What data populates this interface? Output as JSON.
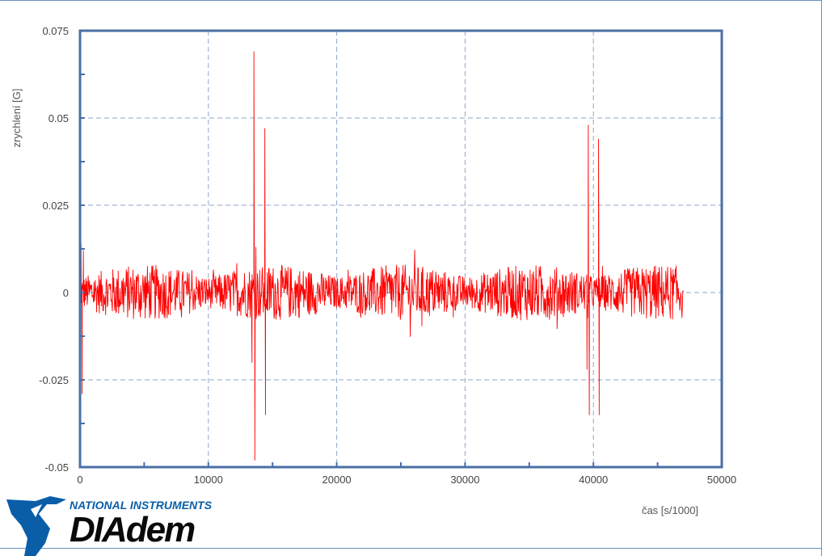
{
  "chart_data": {
    "type": "line",
    "title": "",
    "xlabel": "čas [s/1000]",
    "ylabel": "zrychlení [G]",
    "xlim": [
      0,
      50000
    ],
    "ylim": [
      -0.05,
      0.075
    ],
    "x_ticks": [
      0,
      10000,
      20000,
      30000,
      40000,
      50000
    ],
    "x_tick_labels": [
      "0",
      "10000",
      "20000",
      "30000",
      "40000",
      "50000"
    ],
    "y_ticks": [
      -0.05,
      -0.025,
      0,
      0.025,
      0.05,
      0.075
    ],
    "y_tick_labels": [
      "-0.05",
      "-0.025",
      "0",
      "0.025",
      "0.05",
      "0.075"
    ],
    "grid": true,
    "series": [
      {
        "color": "#ff0000",
        "x_range": [
          0,
          47000
        ],
        "baseline": 0,
        "noise_amplitude": 0.008,
        "points": [
          {
            "x": 0,
            "y": 0
          },
          {
            "x": 80,
            "y": 0.014
          },
          {
            "x": 160,
            "y": -0.029
          },
          {
            "x": 260,
            "y": 0.012
          },
          {
            "x": 13400,
            "y": -0.02
          },
          {
            "x": 13550,
            "y": 0.069
          },
          {
            "x": 13620,
            "y": -0.048
          },
          {
            "x": 13700,
            "y": 0.013
          },
          {
            "x": 14400,
            "y": 0.047
          },
          {
            "x": 14450,
            "y": -0.035
          },
          {
            "x": 39500,
            "y": -0.022
          },
          {
            "x": 39600,
            "y": 0.048
          },
          {
            "x": 39680,
            "y": -0.035
          },
          {
            "x": 40400,
            "y": 0.044
          },
          {
            "x": 40450,
            "y": -0.035
          },
          {
            "x": 47000,
            "y": 0
          }
        ]
      }
    ]
  },
  "logo": {
    "company": "NATIONAL INSTRUMENTS",
    "product": "DIAdem",
    "colors": {
      "primary": "#0a5ea8",
      "text": "#0a0a0a"
    }
  },
  "colors": {
    "axis": "#4a6fa5",
    "grid": "#8ea5c8",
    "series": "#ff0000"
  }
}
